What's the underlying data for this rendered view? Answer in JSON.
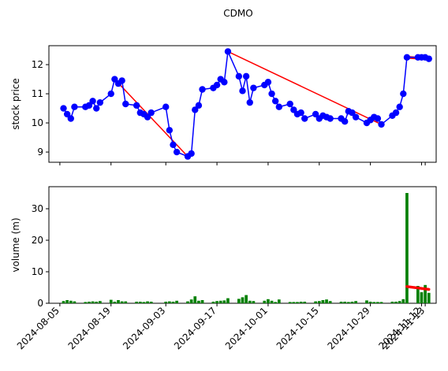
{
  "title": "CDMO",
  "colors": {
    "price_line": "#0000ff",
    "trend_line": "#ff0000",
    "volume_bar": "#008000",
    "axes": "#000000",
    "background": "#ffffff"
  },
  "chart_data": [
    {
      "type": "line",
      "title": "CDMO",
      "ylabel": "stock price",
      "ylabel_color": "#0000ff",
      "ylim": [
        8.65,
        12.65
      ],
      "yticks": [
        9,
        10,
        11,
        12
      ],
      "xlim": [
        "2024-08-02",
        "2024-11-16"
      ],
      "grid": false,
      "series": [
        {
          "style": "line-with-markers",
          "color": "#0000ff",
          "points": [
            [
              "2024-08-06",
              10.5
            ],
            [
              "2024-08-07",
              10.3
            ],
            [
              "2024-08-08",
              10.15
            ],
            [
              "2024-08-09",
              10.55
            ],
            [
              "2024-08-12",
              10.55
            ],
            [
              "2024-08-13",
              10.6
            ],
            [
              "2024-08-14",
              10.75
            ],
            [
              "2024-08-15",
              10.5
            ],
            [
              "2024-08-16",
              10.7
            ],
            [
              "2024-08-19",
              11.0
            ],
            [
              "2024-08-20",
              11.5
            ],
            [
              "2024-08-21",
              11.35
            ],
            [
              "2024-08-22",
              11.45
            ],
            [
              "2024-08-23",
              10.65
            ],
            [
              "2024-08-26",
              10.6
            ],
            [
              "2024-08-27",
              10.35
            ],
            [
              "2024-08-28",
              10.3
            ],
            [
              "2024-08-29",
              10.2
            ],
            [
              "2024-08-30",
              10.35
            ],
            [
              "2024-09-03",
              10.55
            ],
            [
              "2024-09-04",
              9.75
            ],
            [
              "2024-09-05",
              9.25
            ],
            [
              "2024-09-06",
              9.0
            ],
            [
              "2024-09-09",
              8.85
            ],
            [
              "2024-09-10",
              8.95
            ],
            [
              "2024-09-11",
              10.45
            ],
            [
              "2024-09-12",
              10.6
            ],
            [
              "2024-09-13",
              11.15
            ],
            [
              "2024-09-16",
              11.2
            ],
            [
              "2024-09-17",
              11.3
            ],
            [
              "2024-09-18",
              11.5
            ],
            [
              "2024-09-19",
              11.4
            ],
            [
              "2024-09-20",
              12.45
            ],
            [
              "2024-09-23",
              11.6
            ],
            [
              "2024-09-24",
              11.1
            ],
            [
              "2024-09-25",
              11.6
            ],
            [
              "2024-09-26",
              10.7
            ],
            [
              "2024-09-27",
              11.2
            ],
            [
              "2024-09-30",
              11.3
            ],
            [
              "2024-10-01",
              11.4
            ],
            [
              "2024-10-02",
              11.0
            ],
            [
              "2024-10-03",
              10.75
            ],
            [
              "2024-10-04",
              10.55
            ],
            [
              "2024-10-07",
              10.65
            ],
            [
              "2024-10-08",
              10.45
            ],
            [
              "2024-10-09",
              10.3
            ],
            [
              "2024-10-10",
              10.35
            ],
            [
              "2024-10-11",
              10.15
            ],
            [
              "2024-10-14",
              10.3
            ],
            [
              "2024-10-15",
              10.15
            ],
            [
              "2024-10-16",
              10.25
            ],
            [
              "2024-10-17",
              10.2
            ],
            [
              "2024-10-18",
              10.15
            ],
            [
              "2024-10-21",
              10.15
            ],
            [
              "2024-10-22",
              10.05
            ],
            [
              "2024-10-23",
              10.4
            ],
            [
              "2024-10-24",
              10.35
            ],
            [
              "2024-10-25",
              10.2
            ],
            [
              "2024-10-28",
              10.0
            ],
            [
              "2024-10-29",
              10.1
            ],
            [
              "2024-10-30",
              10.2
            ],
            [
              "2024-10-31",
              10.15
            ],
            [
              "2024-11-01",
              9.95
            ],
            [
              "2024-11-04",
              10.25
            ],
            [
              "2024-11-05",
              10.35
            ],
            [
              "2024-11-06",
              10.55
            ],
            [
              "2024-11-07",
              11.0
            ],
            [
              "2024-11-08",
              12.25
            ],
            [
              "2024-11-11",
              12.25
            ],
            [
              "2024-11-12",
              12.25
            ],
            [
              "2024-11-13",
              12.25
            ],
            [
              "2024-11-14",
              12.2
            ]
          ]
        }
      ],
      "trend_lines": [
        {
          "color": "#ff0000",
          "from": [
            "2024-08-20",
            11.5
          ],
          "to": [
            "2024-09-09",
            8.85
          ],
          "width": "thin"
        },
        {
          "color": "#ff0000",
          "from": [
            "2024-09-20",
            12.45
          ],
          "to": [
            "2024-11-01",
            9.95
          ],
          "width": "thin"
        },
        {
          "color": "#ff0000",
          "from": [
            "2024-11-08",
            12.25
          ],
          "to": [
            "2024-11-14",
            12.2
          ],
          "width": "thick"
        }
      ]
    },
    {
      "type": "bar",
      "ylabel": "volume (m)",
      "ylabel_color": "#008000",
      "ylim": [
        0,
        37
      ],
      "yticks": [
        0,
        10,
        20,
        30
      ],
      "xlim": [
        "2024-08-02",
        "2024-11-16"
      ],
      "xticks": [
        "2024-08-05",
        "2024-08-19",
        "2024-09-03",
        "2024-09-17",
        "2024-10-01",
        "2024-10-15",
        "2024-10-29",
        "2024-11-12",
        "2024-11-13"
      ],
      "grid": false,
      "series": [
        {
          "color": "#008000",
          "points": [
            [
              "2024-08-06",
              0.7
            ],
            [
              "2024-08-07",
              1.0
            ],
            [
              "2024-08-08",
              0.8
            ],
            [
              "2024-08-09",
              0.6
            ],
            [
              "2024-08-12",
              0.4
            ],
            [
              "2024-08-13",
              0.5
            ],
            [
              "2024-08-14",
              0.6
            ],
            [
              "2024-08-15",
              0.5
            ],
            [
              "2024-08-16",
              0.7
            ],
            [
              "2024-08-19",
              1.1
            ],
            [
              "2024-08-20",
              0.5
            ],
            [
              "2024-08-21",
              1.0
            ],
            [
              "2024-08-22",
              0.6
            ],
            [
              "2024-08-23",
              0.6
            ],
            [
              "2024-08-26",
              0.5
            ],
            [
              "2024-08-27",
              0.5
            ],
            [
              "2024-08-28",
              0.4
            ],
            [
              "2024-08-29",
              0.6
            ],
            [
              "2024-08-30",
              0.5
            ],
            [
              "2024-09-03",
              0.5
            ],
            [
              "2024-09-04",
              0.6
            ],
            [
              "2024-09-05",
              0.5
            ],
            [
              "2024-09-06",
              0.8
            ],
            [
              "2024-09-09",
              0.6
            ],
            [
              "2024-09-10",
              1.2
            ],
            [
              "2024-09-11",
              2.2
            ],
            [
              "2024-09-12",
              0.8
            ],
            [
              "2024-09-13",
              1.0
            ],
            [
              "2024-09-16",
              0.5
            ],
            [
              "2024-09-17",
              0.7
            ],
            [
              "2024-09-18",
              0.8
            ],
            [
              "2024-09-19",
              0.9
            ],
            [
              "2024-09-20",
              1.6
            ],
            [
              "2024-09-23",
              1.4
            ],
            [
              "2024-09-24",
              1.9
            ],
            [
              "2024-09-25",
              2.6
            ],
            [
              "2024-09-26",
              0.8
            ],
            [
              "2024-09-27",
              0.7
            ],
            [
              "2024-09-30",
              0.8
            ],
            [
              "2024-10-01",
              1.3
            ],
            [
              "2024-10-02",
              0.8
            ],
            [
              "2024-10-03",
              0.4
            ],
            [
              "2024-10-04",
              1.2
            ],
            [
              "2024-10-07",
              0.4
            ],
            [
              "2024-10-08",
              0.4
            ],
            [
              "2024-10-09",
              0.4
            ],
            [
              "2024-10-10",
              0.5
            ],
            [
              "2024-10-11",
              0.5
            ],
            [
              "2024-10-14",
              0.6
            ],
            [
              "2024-10-15",
              0.7
            ],
            [
              "2024-10-16",
              1.0
            ],
            [
              "2024-10-17",
              1.2
            ],
            [
              "2024-10-18",
              0.7
            ],
            [
              "2024-10-21",
              0.5
            ],
            [
              "2024-10-22",
              0.5
            ],
            [
              "2024-10-23",
              0.4
            ],
            [
              "2024-10-24",
              0.5
            ],
            [
              "2024-10-25",
              0.7
            ],
            [
              "2024-10-28",
              0.9
            ],
            [
              "2024-10-29",
              0.5
            ],
            [
              "2024-10-30",
              0.4
            ],
            [
              "2024-10-31",
              0.4
            ],
            [
              "2024-11-01",
              0.4
            ],
            [
              "2024-11-04",
              0.5
            ],
            [
              "2024-11-05",
              0.5
            ],
            [
              "2024-11-06",
              0.7
            ],
            [
              "2024-11-07",
              1.3
            ],
            [
              "2024-11-08",
              35.0
            ],
            [
              "2024-11-11",
              5.5
            ],
            [
              "2024-11-12",
              3.5
            ],
            [
              "2024-11-13",
              5.8
            ],
            [
              "2024-11-14",
              3.3
            ]
          ]
        }
      ],
      "trend_lines": [
        {
          "color": "#ff0000",
          "from": [
            "2024-11-08",
            5.3
          ],
          "to": [
            "2024-11-14",
            4.4
          ],
          "width": "thick"
        }
      ]
    }
  ]
}
